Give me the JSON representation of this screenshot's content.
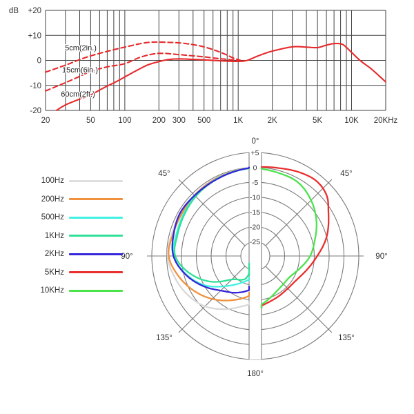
{
  "accent_color": "#e62a2c",
  "grid_color_top": "#424242",
  "grid_color_polar": "#7a7a7a",
  "text_color": "#333333",
  "chart_data": [
    {
      "type": "line",
      "title": "frequency response",
      "ylabel": "dB",
      "x_range": [
        20,
        20000
      ],
      "y_range": [
        -20,
        20
      ],
      "x_scale": "log",
      "grid_freqs": [
        20,
        30,
        40,
        50,
        60,
        70,
        80,
        90,
        100,
        200,
        300,
        400,
        500,
        600,
        700,
        800,
        900,
        1000,
        2000,
        3000,
        4000,
        5000,
        6000,
        7000,
        8000,
        9000,
        10000,
        20000
      ],
      "x_ticks": [
        {
          "f": 20,
          "label": "20"
        },
        {
          "f": 50,
          "label": "50"
        },
        {
          "f": 100,
          "label": "100"
        },
        {
          "f": 200,
          "label": "200"
        },
        {
          "f": 300,
          "label": "300"
        },
        {
          "f": 500,
          "label": "500"
        },
        {
          "f": 1000,
          "label": "1K"
        },
        {
          "f": 2000,
          "label": "2K"
        },
        {
          "f": 5000,
          "label": "5K"
        },
        {
          "f": 10000,
          "label": "10K"
        },
        {
          "f": 20000,
          "label": "20KHz"
        }
      ],
      "y_ticks": [
        {
          "db": 20,
          "label": "+20"
        },
        {
          "db": 10,
          "label": "+10"
        },
        {
          "db": 0,
          "label": "0"
        },
        {
          "db": -10,
          "label": "-10"
        },
        {
          "db": -20,
          "label": "-20"
        }
      ],
      "series": [
        {
          "name": "60cm(2ft.)",
          "style": "solid",
          "color": "#e62a2c",
          "points": [
            [
              25,
              -20
            ],
            [
              30,
              -17.8
            ],
            [
              40,
              -15.5
            ],
            [
              50,
              -13.8
            ],
            [
              65,
              -11
            ],
            [
              85,
              -8.4
            ],
            [
              105,
              -6.1
            ],
            [
              130,
              -3.8
            ],
            [
              160,
              -1.8
            ],
            [
              200,
              -0.5
            ],
            [
              240,
              0.3
            ],
            [
              300,
              0.6
            ],
            [
              400,
              0.4
            ],
            [
              500,
              0.2
            ],
            [
              600,
              0
            ],
            [
              800,
              -0.3
            ],
            [
              1000,
              -0.4
            ],
            [
              1200,
              0
            ],
            [
              1500,
              1.8
            ],
            [
              2000,
              3.7
            ],
            [
              3000,
              5.4
            ],
            [
              4000,
              5.3
            ],
            [
              5000,
              5.1
            ],
            [
              6000,
              6.1
            ],
            [
              7000,
              6.7
            ],
            [
              8200,
              6.5
            ],
            [
              9000,
              5.2
            ],
            [
              10000,
              3.2
            ],
            [
              12000,
              -0.2
            ],
            [
              15000,
              -3.5
            ],
            [
              20000,
              -8.6
            ]
          ]
        },
        {
          "name": "5cm(2in.)",
          "style": "dashed",
          "color": "#e62a2c",
          "points": [
            [
              20,
              -4.7
            ],
            [
              30,
              -1.9
            ],
            [
              40,
              0.3
            ],
            [
              50,
              1.8
            ],
            [
              70,
              3.6
            ],
            [
              100,
              5.3
            ],
            [
              150,
              7.0
            ],
            [
              200,
              7.3
            ],
            [
              300,
              7.0
            ],
            [
              400,
              6.3
            ],
            [
              500,
              5.4
            ],
            [
              600,
              4.3
            ],
            [
              700,
              3.2
            ],
            [
              800,
              2.1
            ],
            [
              900,
              1.0
            ],
            [
              1050,
              0
            ]
          ]
        },
        {
          "name": "15cm(6in.)",
          "style": "dashed",
          "color": "#e62a2c",
          "points": [
            [
              20,
              -12.2
            ],
            [
              30,
              -8.9
            ],
            [
              40,
              -6.4
            ],
            [
              50,
              -4.4
            ],
            [
              70,
              -2.6
            ],
            [
              100,
              -1.3
            ],
            [
              140,
              1.4
            ],
            [
              200,
              2.8
            ],
            [
              300,
              2.3
            ],
            [
              400,
              1.8
            ],
            [
              500,
              1.4
            ],
            [
              650,
              0.8
            ],
            [
              800,
              0.4
            ],
            [
              1000,
              0
            ]
          ]
        }
      ],
      "annotations": [
        {
          "text": "5cm(2in.)",
          "x": 117,
          "y": 73
        },
        {
          "text": "15cm(6in.)",
          "x": 116,
          "y": 105
        },
        {
          "text": "60cm(2ft.)",
          "x": 113,
          "y": 140
        }
      ]
    },
    {
      "type": "polar",
      "title": "polar pattern",
      "rings": [
        {
          "db": 5,
          "label": "+5"
        },
        {
          "db": 0,
          "label": "0"
        },
        {
          "db": -5,
          "label": "-5"
        },
        {
          "db": -10,
          "label": "-10"
        },
        {
          "db": -15,
          "label": "-15"
        },
        {
          "db": -20,
          "label": "-20"
        },
        {
          "db": -25,
          "label": "-25"
        }
      ],
      "angle_labels": [
        {
          "angle": 0,
          "label": "0°"
        },
        {
          "angle": 45,
          "label": "45°"
        },
        {
          "angle": 90,
          "label": "90°"
        },
        {
          "angle": 135,
          "label": "135°"
        },
        {
          "angle": 180,
          "label": "180°"
        }
      ],
      "spoke_angles": [
        45,
        90,
        135
      ],
      "series": [
        {
          "name": "100Hz",
          "color": "#d8d8d8",
          "side": "left",
          "points": [
            [
              0,
              -0.1
            ],
            [
              15,
              -0.3
            ],
            [
              30,
              -0.5
            ],
            [
              45,
              -0.8
            ],
            [
              60,
              -1.0
            ],
            [
              75,
              -0.8
            ],
            [
              90,
              -0.3
            ],
            [
              105,
              -1.8
            ],
            [
              120,
              -3.6
            ],
            [
              135,
              -5.9
            ],
            [
              150,
              -9.2
            ],
            [
              165,
              -12.3
            ],
            [
              180,
              -14.2
            ]
          ]
        },
        {
          "name": "200Hz",
          "color": "#f0913d",
          "side": "left",
          "points": [
            [
              0,
              -0.2
            ],
            [
              15,
              -0.4
            ],
            [
              30,
              -0.7
            ],
            [
              45,
              -1.0
            ],
            [
              60,
              -1.3
            ],
            [
              75,
              -1.2
            ],
            [
              90,
              -0.7
            ],
            [
              105,
              -3.2
            ],
            [
              120,
              -6.2
            ],
            [
              135,
              -9.4
            ],
            [
              150,
              -12.6
            ],
            [
              165,
              -15.3
            ],
            [
              180,
              -17.5
            ]
          ]
        },
        {
          "name": "500Hz",
          "color": "#3df2e2",
          "side": "left",
          "points": [
            [
              0,
              -0.2
            ],
            [
              15,
              -0.5
            ],
            [
              30,
              -0.9
            ],
            [
              45,
              -1.3
            ],
            [
              60,
              -1.9
            ],
            [
              75,
              -2.3
            ],
            [
              90,
              -2.4
            ],
            [
              105,
              -5.8
            ],
            [
              120,
              -10.2
            ],
            [
              135,
              -15.5
            ],
            [
              150,
              -19.2
            ],
            [
              165,
              -21.6
            ],
            [
              180,
              -22.6
            ]
          ]
        },
        {
          "name": "1KHz",
          "color": "#2fe096",
          "side": "left",
          "points": [
            [
              0,
              -0.2
            ],
            [
              15,
              -0.6
            ],
            [
              30,
              -1.0
            ],
            [
              45,
              -1.5
            ],
            [
              60,
              -2.2
            ],
            [
              75,
              -2.7
            ],
            [
              90,
              -2.9
            ],
            [
              105,
              -7.1
            ],
            [
              120,
              -12.6
            ],
            [
              135,
              -18.7
            ],
            [
              150,
              -20.6
            ],
            [
              158,
              -22.0
            ],
            [
              165,
              -26.8
            ],
            [
              170,
              -26.8
            ],
            [
              176,
              -23.6
            ],
            [
              180,
              -23.6
            ]
          ]
        },
        {
          "name": "2KHz",
          "color": "#3326d9",
          "side": "left",
          "points": [
            [
              0,
              0
            ],
            [
              15,
              -0.6
            ],
            [
              30,
              -1.0
            ],
            [
              45,
              -1.0
            ],
            [
              60,
              -0.7
            ],
            [
              75,
              -1.4
            ],
            [
              90,
              -2.3
            ],
            [
              105,
              -5.6
            ],
            [
              120,
              -9.6
            ],
            [
              135,
              -13.4
            ],
            [
              150,
              -15.6
            ],
            [
              165,
              -17.6
            ],
            [
              180,
              -19.6
            ]
          ]
        },
        {
          "name": "5KHz",
          "color": "#ea2e2e",
          "side": "right",
          "points": [
            [
              0,
              0
            ],
            [
              15,
              0.8
            ],
            [
              30,
              2.2
            ],
            [
              40,
              2.7
            ],
            [
              50,
              1.6
            ],
            [
              60,
              -1.4
            ],
            [
              75,
              -5.0
            ],
            [
              90,
              -9.0
            ],
            [
              105,
              -11.9
            ],
            [
              120,
              -13.8
            ],
            [
              135,
              -14.4
            ],
            [
              150,
              -14.2
            ],
            [
              165,
              -13.6
            ],
            [
              180,
              -12.4
            ]
          ]
        },
        {
          "name": "10KHz",
          "color": "#4ae34a",
          "side": "right",
          "points": [
            [
              0,
              -0.3
            ],
            [
              15,
              -0.8
            ],
            [
              30,
              -1.2
            ],
            [
              45,
              -3.3
            ],
            [
              60,
              -6.1
            ],
            [
              75,
              -9.1
            ],
            [
              90,
              -11.4
            ],
            [
              105,
              -14.2
            ],
            [
              120,
              -16.2
            ],
            [
              135,
              -16.5
            ],
            [
              150,
              -15.9
            ],
            [
              165,
              -14.4
            ],
            [
              180,
              -12.4
            ]
          ]
        }
      ],
      "legend_colors": [
        "#dedede",
        "#f0913d",
        "#3df2e2",
        "#2fe096",
        "#3326d9",
        "#ea2e2e",
        "#4ae34a"
      ]
    }
  ]
}
